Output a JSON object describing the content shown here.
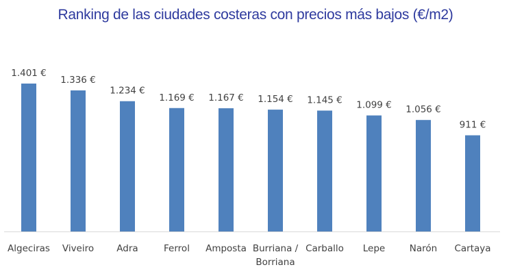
{
  "chart_data": {
    "type": "bar",
    "title": "Ranking de las ciudades costeras con precios más bajos (€/m2)",
    "categories": [
      [
        "Algeciras"
      ],
      [
        "Viveiro"
      ],
      [
        "Adra"
      ],
      [
        "Ferrol"
      ],
      [
        "Amposta"
      ],
      [
        "Burriana /",
        "Borriana"
      ],
      [
        "Carballo"
      ],
      [
        "Lepe"
      ],
      [
        "Narón"
      ],
      [
        "Cartaya"
      ]
    ],
    "values": [
      1401,
      1336,
      1234,
      1169,
      1167,
      1154,
      1145,
      1099,
      1056,
      911
    ],
    "value_labels": [
      "1.401 €",
      "1.336 €",
      "1.234 €",
      "1.169 €",
      "1.167 €",
      "1.154 €",
      "1.145 €",
      "1.099 €",
      "1.056 €",
      "911 €"
    ],
    "xlabel": "",
    "ylabel": "",
    "ylim": [
      0,
      1450
    ],
    "grid": false,
    "legend": "none",
    "colors": {
      "bar": "#4f81bd",
      "title": "#2e3a9e",
      "axis": "#d9d9d9"
    }
  }
}
